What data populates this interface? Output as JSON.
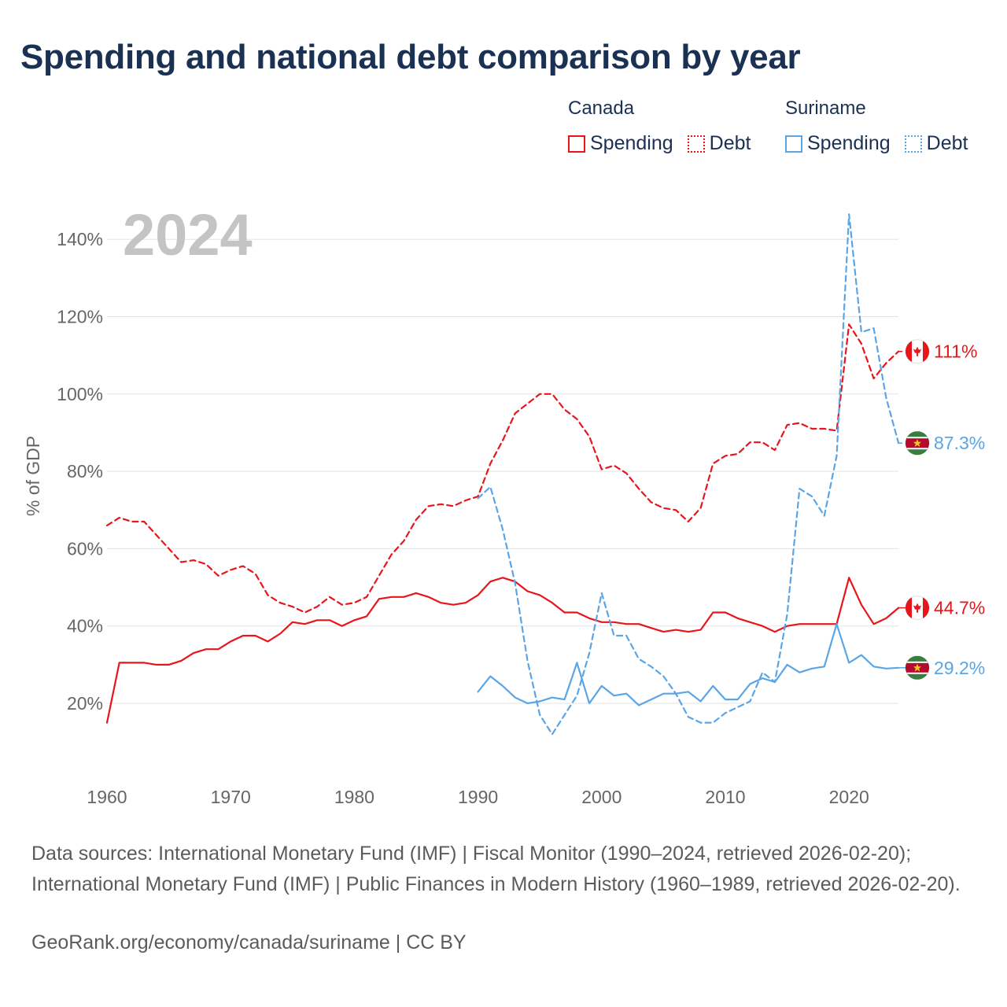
{
  "title": "Spending and national debt comparison by year",
  "legend": {
    "groups": [
      {
        "country": "Canada",
        "color": "#e8151b",
        "spending_label": "Spending",
        "debt_label": "Debt"
      },
      {
        "country": "Suriname",
        "color": "#5aa5e6",
        "spending_label": "Spending",
        "debt_label": "Debt"
      }
    ]
  },
  "footer": {
    "sources": "Data sources: International Monetary Fund (IMF) | Fiscal Monitor (1990–2024, retrieved 2026-02-20); International Monetary Fund (IMF) | Public Finances in Modern History (1960–1989, retrieved 2026-02-20).",
    "credit": "GeoRank.org/economy/canada/suriname | CC BY"
  },
  "chart_data": {
    "type": "line",
    "year_label": "2024",
    "ylabel": "% of GDP",
    "xlim": [
      1960,
      2025
    ],
    "ylim": [
      8,
      148
    ],
    "xticks": [
      1960,
      1970,
      1980,
      1990,
      2000,
      2010,
      2020
    ],
    "yticks": [
      20,
      40,
      60,
      80,
      100,
      120,
      140
    ],
    "ytick_labels": [
      "20%",
      "40%",
      "60%",
      "80%",
      "100%",
      "120%",
      "140%"
    ],
    "grid": true,
    "series": [
      {
        "name": "Canada Debt",
        "country": "Canada",
        "metric": "Debt",
        "color": "#e8151b",
        "dashed": true,
        "start_year": 1960,
        "end_label": "111%",
        "values": [
          66,
          68,
          67,
          67,
          63.5,
          60,
          56.5,
          57,
          56,
          53,
          54.5,
          55.5,
          53.5,
          48,
          46,
          45,
          43.5,
          45,
          47.5,
          45.5,
          46,
          47.5,
          53,
          58.5,
          62,
          67.5,
          71,
          71.5,
          71,
          72.5,
          73.5,
          82,
          88,
          95,
          97.5,
          100,
          100,
          96,
          93.5,
          89,
          80.5,
          81.5,
          79.5,
          75.5,
          72,
          70.5,
          70,
          67,
          70.5,
          82,
          84,
          84.5,
          87.5,
          87.5,
          85.5,
          92,
          92.5,
          91,
          91,
          90.5,
          118,
          113,
          104,
          108,
          111
        ]
      },
      {
        "name": "Canada Spending",
        "country": "Canada",
        "metric": "Spending",
        "color": "#e8151b",
        "dashed": false,
        "start_year": 1960,
        "end_label": "44.7%",
        "values": [
          15,
          30.5,
          30.5,
          30.5,
          30,
          30,
          31,
          33,
          34,
          34,
          36,
          37.5,
          37.5,
          36,
          38,
          41,
          40.5,
          41.5,
          41.5,
          40,
          41.5,
          42.5,
          47,
          47.5,
          47.5,
          48.5,
          47.5,
          46,
          45.5,
          46,
          48,
          51.5,
          52.5,
          51.5,
          49,
          48,
          46,
          43.5,
          43.5,
          42,
          41,
          41,
          40.5,
          40.5,
          39.5,
          38.5,
          39,
          38.5,
          39,
          43.5,
          43.5,
          42,
          41,
          40,
          38.5,
          40,
          40.5,
          40.5,
          40.5,
          40.5,
          52.5,
          45.5,
          40.5,
          42,
          44.7
        ]
      },
      {
        "name": "Suriname Debt",
        "country": "Suriname",
        "metric": "Debt",
        "color": "#5aa5e6",
        "dashed": true,
        "start_year": 1990,
        "end_label": "87.3%",
        "values": [
          73,
          76,
          65,
          51,
          31,
          17,
          12,
          17,
          22,
          33,
          48.5,
          37.5,
          37.5,
          31.5,
          29.5,
          27,
          22.5,
          16.5,
          15,
          15,
          17.5,
          19,
          20.5,
          28,
          25.5,
          43,
          75.5,
          73.5,
          68.5,
          84,
          146.5,
          116,
          117,
          99,
          87.3
        ]
      },
      {
        "name": "Suriname Spending",
        "country": "Suriname",
        "metric": "Spending",
        "color": "#5aa5e6",
        "dashed": false,
        "start_year": 1990,
        "end_label": "29.2%",
        "values": [
          23,
          27,
          24.5,
          21.5,
          20,
          20.5,
          21.5,
          21,
          30.5,
          20,
          24.5,
          22,
          22.5,
          19.5,
          21,
          22.5,
          22.5,
          23,
          20.5,
          24.5,
          21,
          21,
          25,
          26.5,
          25.5,
          30,
          28,
          29,
          29.5,
          40.5,
          30.5,
          32.5,
          29.5,
          29,
          29.2
        ]
      }
    ]
  }
}
